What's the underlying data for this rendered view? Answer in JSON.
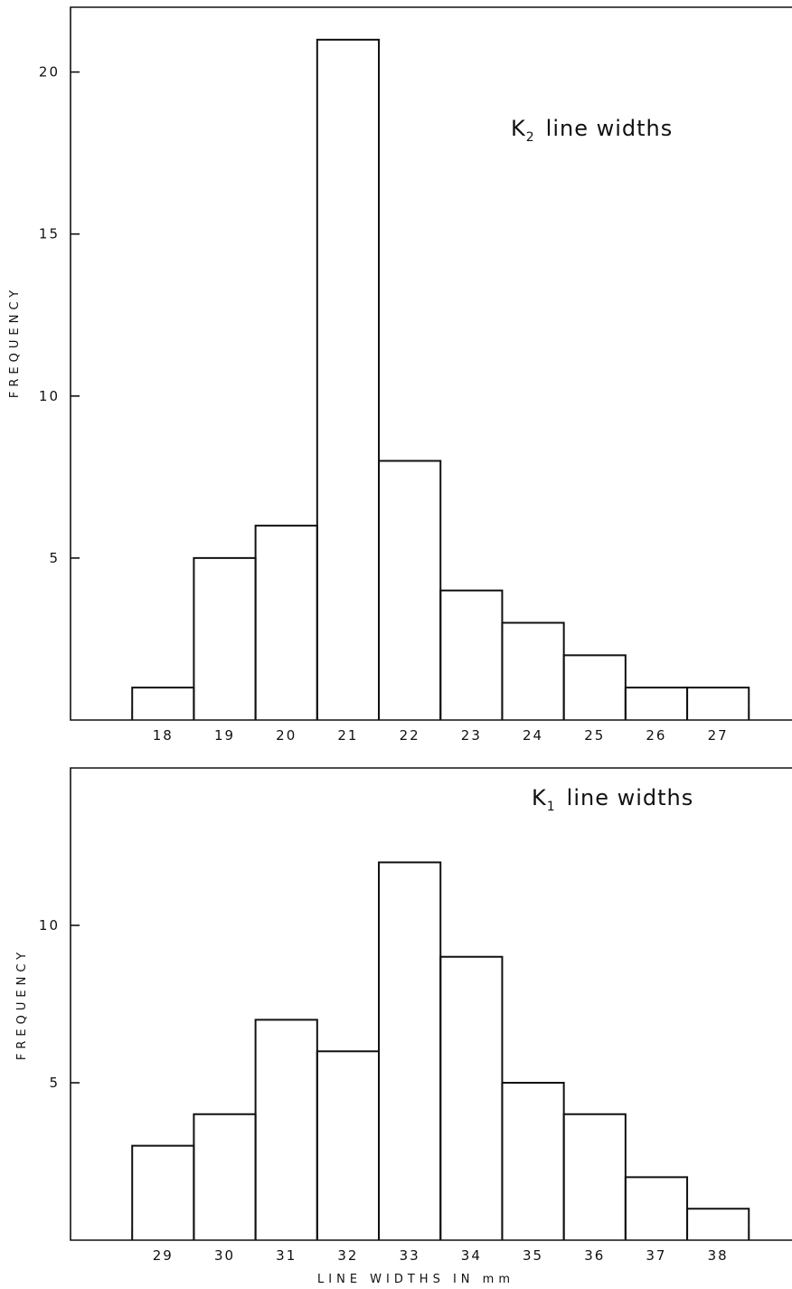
{
  "chart_data": [
    {
      "type": "bar",
      "subtype": "histogram",
      "annotation": {
        "main": "K",
        "sub": "2",
        "rest": "line widths"
      },
      "ylabel": "FREQUENCY",
      "xlabel": "",
      "categories": [
        "18",
        "19",
        "20",
        "21",
        "22",
        "23",
        "24",
        "25",
        "26",
        "27"
      ],
      "values": [
        1,
        5,
        6,
        21,
        8,
        4,
        3,
        2,
        1,
        1
      ],
      "xlim": [
        16.5,
        28.2
      ],
      "ylim": [
        0,
        22
      ],
      "yticks": [
        5,
        10,
        15,
        20
      ],
      "ytick_labels": [
        "5",
        "10",
        "15",
        "20"
      ],
      "grid": false,
      "legend": "none"
    },
    {
      "type": "bar",
      "subtype": "histogram",
      "annotation": {
        "main": "K",
        "sub": "1",
        "rest": "line widths"
      },
      "ylabel": "FREQUENCY",
      "xlabel": "LINE WIDTHS IN mm",
      "categories": [
        "29",
        "30",
        "31",
        "32",
        "33",
        "34",
        "35",
        "36",
        "37",
        "38"
      ],
      "values": [
        3,
        4,
        7,
        6,
        12,
        9,
        5,
        4,
        2,
        1
      ],
      "xlim": [
        27.5,
        39.2
      ],
      "ylim": [
        0,
        15
      ],
      "yticks": [
        5,
        10
      ],
      "ytick_labels": [
        "5",
        "10"
      ],
      "grid": false,
      "legend": "none"
    }
  ]
}
